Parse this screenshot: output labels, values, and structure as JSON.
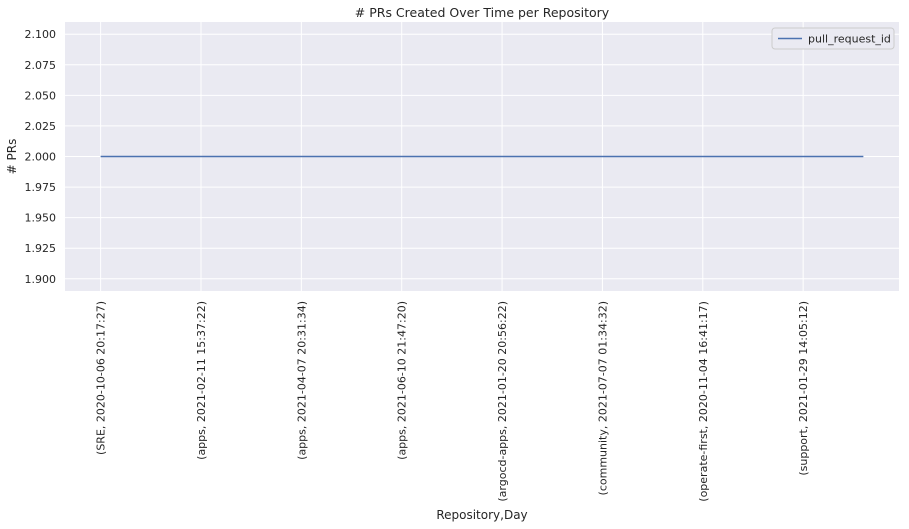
{
  "chart_data": {
    "type": "line",
    "title": "# PRs Created Over Time per Repository",
    "xlabel": "Repository,Day",
    "ylabel": "# PRs",
    "categories": [
      "(SRE, 2020-10-06 20:17:27)",
      "(apps, 2021-02-11 15:37:22)",
      "(apps, 2021-04-07 20:31:34)",
      "(apps, 2021-06-10 21:47:20)",
      "(argocd-apps, 2021-01-20 20:56:22)",
      "(community, 2021-07-07 01:34:32)",
      "(operate-first, 2020-11-04 16:41:17)",
      "(support, 2021-01-29 14:05:12)"
    ],
    "x_span": [
      0,
      7.6
    ],
    "series": [
      {
        "name": "pull_request_id",
        "x": [
          0,
          7.6
        ],
        "values": [
          2.0,
          2.0
        ]
      }
    ],
    "yticks": [
      "1.900",
      "1.925",
      "1.950",
      "1.975",
      "2.000",
      "2.025",
      "2.050",
      "2.075",
      "2.100"
    ],
    "ylim": [
      1.89,
      2.11
    ],
    "grid": true,
    "legend_position": "top-right",
    "colors": {
      "background": "#eaeaf2",
      "grid": "#ffffff",
      "line": "#4c72b0"
    }
  }
}
